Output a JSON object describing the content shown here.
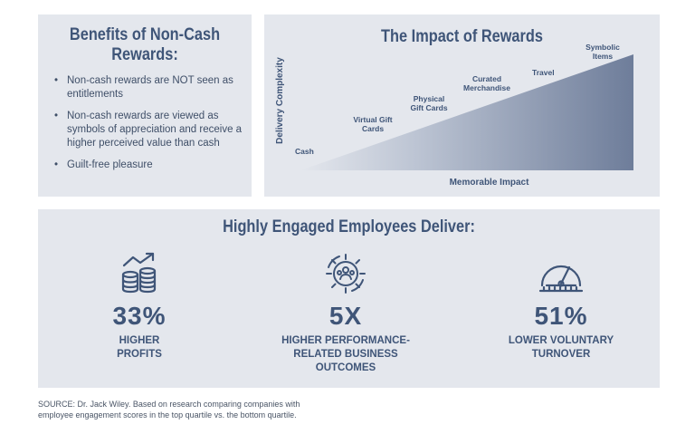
{
  "benefits": {
    "title_line1": "Benefits of Non-Cash",
    "title_line2": "Rewards:",
    "items": [
      "Non-cash rewards are NOT seen as entitlements",
      "Non-cash rewards are viewed as symbols of appreciation and receive a higher perceived value than cash",
      "Guilt-free pleasure"
    ]
  },
  "impact": {
    "title": "The Impact of Rewards",
    "ylabel": "Delivery Complexity",
    "xlabel": "Memorable Impact",
    "labels": {
      "cash": "Cash",
      "virtual_1": "Virtual Gift",
      "virtual_2": "Cards",
      "physical_1": "Physical",
      "physical_2": "Gift Cards",
      "curated_1": "Curated",
      "curated_2": "Merchandise",
      "travel": "Travel",
      "symbolic_1": "Symbolic",
      "symbolic_2": "Items"
    }
  },
  "engaged": {
    "title": "Highly Engaged Employees Deliver:",
    "stats": [
      {
        "value": "33%",
        "line1": "HIGHER",
        "line2": "PROFITS",
        "line3": "",
        "icon": "coins-growth-icon"
      },
      {
        "value": "5X",
        "line1": "HIGHER PERFORMANCE-",
        "line2": "RELATED BUSINESS",
        "line3": "OUTCOMES",
        "icon": "gear-people-icon"
      },
      {
        "value": "51%",
        "line1": "LOWER VOLUNTARY",
        "line2": "TURNOVER",
        "line3": "",
        "icon": "gauge-icon"
      }
    ]
  },
  "source": {
    "line1": "SOURCE: Dr. Jack Wiley. Based on research comparing companies with",
    "line2": "employee engagement scores in the top quartile vs. the bottom quartile."
  },
  "colors": {
    "panel": "#e4e7ed",
    "title": "#3f5578",
    "wedge_dark": "#6e7d9a",
    "wedge_light": "#e4e7ed"
  }
}
